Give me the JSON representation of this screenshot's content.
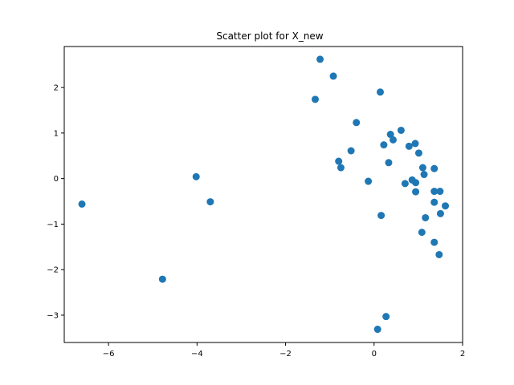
{
  "chart_data": {
    "type": "scatter",
    "title": "Scatter plot for X_new",
    "xlabel": "",
    "ylabel": "",
    "xlim": [
      -7.0,
      2.0
    ],
    "ylim": [
      -3.6,
      2.9
    ],
    "xticks": [
      -6,
      -4,
      -2,
      0,
      2
    ],
    "yticks": [
      -3,
      -2,
      -1,
      0,
      1,
      2
    ],
    "xtick_labels": [
      "−6",
      "−4",
      "−2",
      "0",
      "2"
    ],
    "ytick_labels": [
      "−3",
      "−2",
      "−1",
      "0",
      "1",
      "2"
    ],
    "grid": false,
    "marker_color": "#1f77b4",
    "points": [
      {
        "x": -6.6,
        "y": -0.56
      },
      {
        "x": -4.78,
        "y": -2.21
      },
      {
        "x": -4.02,
        "y": 0.04
      },
      {
        "x": -3.7,
        "y": -0.51
      },
      {
        "x": -1.22,
        "y": 2.62
      },
      {
        "x": -0.92,
        "y": 2.25
      },
      {
        "x": -1.33,
        "y": 1.74
      },
      {
        "x": -0.4,
        "y": 1.23
      },
      {
        "x": -0.52,
        "y": 0.61
      },
      {
        "x": -0.8,
        "y": 0.38
      },
      {
        "x": -0.75,
        "y": 0.24
      },
      {
        "x": -0.13,
        "y": -0.06
      },
      {
        "x": 0.14,
        "y": 1.9
      },
      {
        "x": 0.22,
        "y": 0.74
      },
      {
        "x": 0.37,
        "y": 0.97
      },
      {
        "x": 0.43,
        "y": 0.85
      },
      {
        "x": 0.33,
        "y": 0.35
      },
      {
        "x": 0.61,
        "y": 1.06
      },
      {
        "x": 0.79,
        "y": 0.71
      },
      {
        "x": 0.93,
        "y": 0.77
      },
      {
        "x": 1.01,
        "y": 0.56
      },
      {
        "x": 1.1,
        "y": 0.24
      },
      {
        "x": 1.13,
        "y": 0.09
      },
      {
        "x": 1.36,
        "y": 0.22
      },
      {
        "x": 0.7,
        "y": -0.11
      },
      {
        "x": 0.86,
        "y": -0.03
      },
      {
        "x": 0.94,
        "y": -0.09
      },
      {
        "x": 0.94,
        "y": -0.29
      },
      {
        "x": 1.36,
        "y": -0.28
      },
      {
        "x": 1.49,
        "y": -0.28
      },
      {
        "x": 1.36,
        "y": -0.52
      },
      {
        "x": 1.61,
        "y": -0.6
      },
      {
        "x": 1.5,
        "y": -0.77
      },
      {
        "x": 0.16,
        "y": -0.81
      },
      {
        "x": 1.16,
        "y": -0.86
      },
      {
        "x": 1.08,
        "y": -1.18
      },
      {
        "x": 1.36,
        "y": -1.4
      },
      {
        "x": 1.47,
        "y": -1.67
      },
      {
        "x": 0.27,
        "y": -3.03
      },
      {
        "x": 0.08,
        "y": -3.31
      }
    ]
  }
}
